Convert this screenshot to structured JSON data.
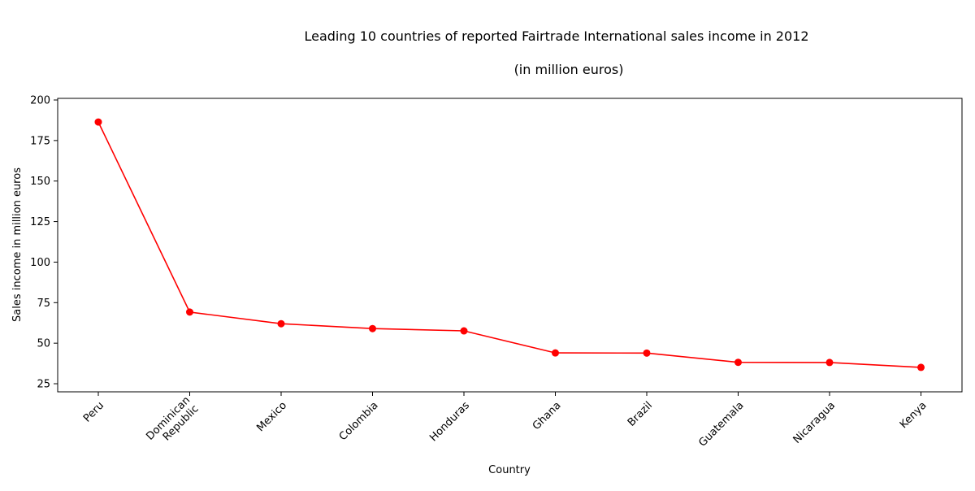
{
  "chart_data": {
    "type": "line",
    "title": "Leading 10 countries of reported Fairtrade International sales income in 2012",
    "subtitle": "(in million euros)",
    "xlabel": "Country",
    "ylabel": "Sales income in million euros",
    "categories": [
      [
        "Peru"
      ],
      [
        "Dominican",
        "Republic"
      ],
      [
        "Mexico"
      ],
      [
        "Colombia"
      ],
      [
        "Honduras"
      ],
      [
        "Ghana"
      ],
      [
        "Brazil"
      ],
      [
        "Guatemala"
      ],
      [
        "Nicaragua"
      ],
      [
        "Kenya"
      ]
    ],
    "values": [
      186.4,
      69.2,
      62.0,
      59.0,
      57.6,
      44.0,
      43.9,
      38.2,
      38.1,
      35.1
    ],
    "yticks": [
      25,
      50,
      75,
      100,
      125,
      150,
      175,
      200
    ],
    "ylim": [
      20,
      201
    ],
    "grid": false,
    "legend": "none",
    "line_color": "#ff0000",
    "marker_color": "#ff0000"
  }
}
